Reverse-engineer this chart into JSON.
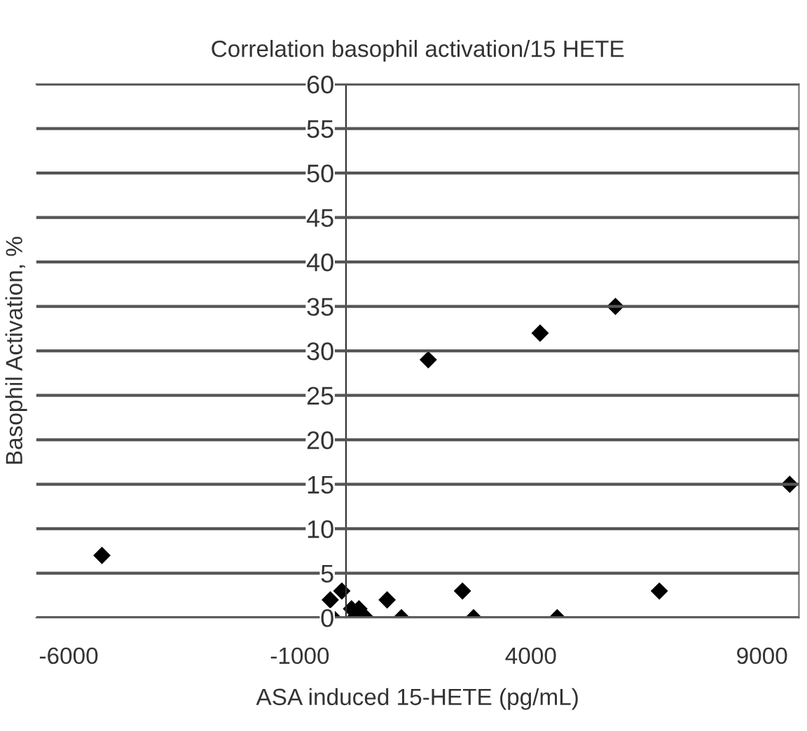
{
  "chart_data": {
    "type": "scatter",
    "title": "Correlation basophil activation/15 HETE",
    "xlabel": "ASA induced 15-HETE (pg/mL)",
    "ylabel": "Basophil Activation, %",
    "x": [
      -5280,
      -340,
      -90,
      -280,
      120,
      280,
      430,
      180,
      890,
      1200,
      2520,
      2760,
      4570,
      6780,
      1780,
      4200,
      5830,
      9600
    ],
    "series": [
      {
        "color": "#000000",
        "values": [
          7,
          2,
          3,
          0,
          1,
          1,
          0,
          0,
          2,
          0,
          3,
          0,
          0,
          3,
          29,
          32,
          35,
          15
        ]
      }
    ],
    "xlim": [
      -6700,
      9800
    ],
    "xticks": [
      -6000,
      -1000,
      4000,
      9000
    ],
    "ylim": [
      0,
      60
    ],
    "yticks": [
      0,
      5,
      10,
      15,
      20,
      25,
      30,
      35,
      40,
      45,
      50,
      55,
      60
    ],
    "grid": "y",
    "marker": "diamond",
    "legend": false
  }
}
